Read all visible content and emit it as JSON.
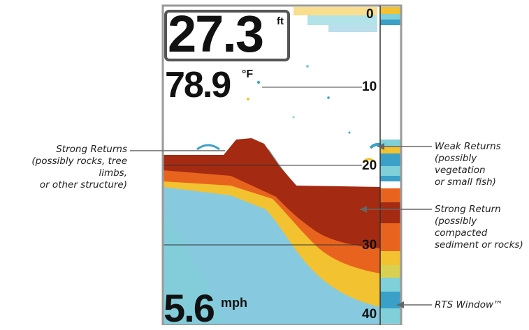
{
  "depth_readout": {
    "value": "27.3",
    "unit": "ft"
  },
  "temperature_readout": {
    "value": "78.9",
    "unit": "°F"
  },
  "speed_readout": {
    "value": "5.6",
    "unit": "mph"
  },
  "depth_scale": [
    "0",
    "10",
    "20",
    "30",
    "40"
  ],
  "callouts": {
    "strong_returns_left": "Strong Returns\n(possibly rocks, tree limbs,\nor other structure)",
    "weak_returns": "Weak Returns\n(possibly vegetation\nor small fish)",
    "strong_return_right": "Strong Return\n(possibly compacted\nsediment or rocks)",
    "rts_window": "RTS Window™"
  },
  "colors": {
    "strong": "#a52a12",
    "medium": "#e8641e",
    "mild": "#f2c230",
    "weak": "#3aa0c8",
    "faint": "#7fd0d8",
    "frame": "#9a9a9a"
  }
}
